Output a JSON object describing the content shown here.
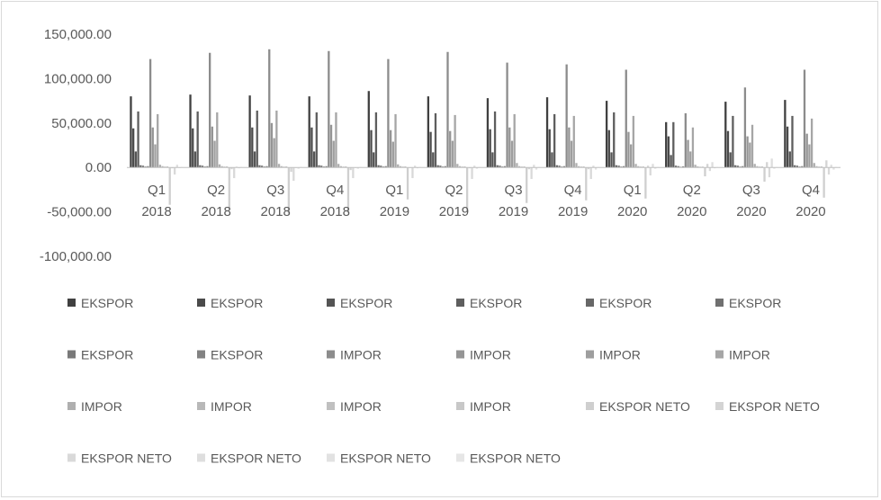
{
  "chart_data": {
    "type": "bar",
    "categories": [
      {
        "quarter": "Q1",
        "year": "2018"
      },
      {
        "quarter": "Q2",
        "year": "2018"
      },
      {
        "quarter": "Q3",
        "year": "2018"
      },
      {
        "quarter": "Q4",
        "year": "2018"
      },
      {
        "quarter": "Q1",
        "year": "2019"
      },
      {
        "quarter": "Q2",
        "year": "2019"
      },
      {
        "quarter": "Q3",
        "year": "2019"
      },
      {
        "quarter": "Q4",
        "year": "2019"
      },
      {
        "quarter": "Q1",
        "year": "2020"
      },
      {
        "quarter": "Q2",
        "year": "2020"
      },
      {
        "quarter": "Q3",
        "year": "2020"
      },
      {
        "quarter": "Q4",
        "year": "2020"
      }
    ],
    "ylim": [
      -100000,
      150000
    ],
    "yticks": [
      150000,
      100000,
      50000,
      0,
      -50000,
      -100000
    ],
    "ytick_labels": [
      "150,000.00",
      "100,000.00",
      "50,000.00",
      "0.00",
      "-50,000.00",
      "-100,000.00"
    ],
    "grid": false,
    "legend_position": "bottom",
    "series": [
      {
        "name": "EKSPOR",
        "color": "#404040",
        "values": [
          80000,
          82000,
          81000,
          80000,
          86000,
          80000,
          78000,
          79000,
          75000,
          51000,
          74000,
          76000
        ]
      },
      {
        "name": "EKSPOR",
        "color": "#4a4a4a",
        "values": [
          44000,
          44000,
          45000,
          45000,
          42000,
          40000,
          43000,
          43000,
          42000,
          35000,
          41000,
          46000
        ]
      },
      {
        "name": "EKSPOR",
        "color": "#545454",
        "values": [
          18000,
          18000,
          18000,
          18000,
          17000,
          17000,
          17000,
          17000,
          17000,
          14000,
          17000,
          18000
        ]
      },
      {
        "name": "EKSPOR",
        "color": "#5e5e5e",
        "values": [
          63000,
          63000,
          64000,
          62000,
          62000,
          61000,
          63000,
          60000,
          62000,
          51000,
          58000,
          58000
        ]
      },
      {
        "name": "EKSPOR",
        "color": "#676767",
        "values": [
          2500,
          2500,
          2500,
          2500,
          2500,
          2500,
          2500,
          2500,
          2500,
          2000,
          2500,
          2500
        ]
      },
      {
        "name": "EKSPOR",
        "color": "#707070",
        "values": [
          2000,
          2000,
          2000,
          2000,
          2000,
          2000,
          2000,
          2000,
          2000,
          1500,
          2000,
          2000
        ]
      },
      {
        "name": "EKSPOR",
        "color": "#797979",
        "values": [
          1000,
          1000,
          1000,
          1000,
          1000,
          1000,
          1000,
          1000,
          1000,
          800,
          1000,
          1000
        ]
      },
      {
        "name": "EKSPOR",
        "color": "#828282",
        "values": [
          1500,
          1500,
          1500,
          1500,
          1500,
          1500,
          1500,
          1500,
          1500,
          1200,
          1500,
          1500
        ]
      },
      {
        "name": "IMPOR",
        "color": "#8c8c8c",
        "values": [
          122000,
          129000,
          133000,
          131000,
          122000,
          130000,
          118000,
          116000,
          110000,
          61000,
          90000,
          110000
        ]
      },
      {
        "name": "IMPOR",
        "color": "#959595",
        "values": [
          45000,
          46000,
          50000,
          48000,
          42000,
          41000,
          45000,
          45000,
          40000,
          31000,
          35000,
          38000
        ]
      },
      {
        "name": "IMPOR",
        "color": "#9e9e9e",
        "values": [
          26000,
          30000,
          33000,
          30000,
          29000,
          30000,
          30000,
          30000,
          26000,
          18000,
          28000,
          26000
        ]
      },
      {
        "name": "IMPOR",
        "color": "#a6a6a6",
        "values": [
          60000,
          62000,
          64000,
          62000,
          60000,
          59000,
          60000,
          58000,
          58000,
          45000,
          48000,
          55000
        ]
      },
      {
        "name": "IMPOR",
        "color": "#afafaf",
        "values": [
          3000,
          3500,
          4000,
          4000,
          3500,
          4000,
          5000,
          5000,
          4000,
          3000,
          4000,
          5000
        ]
      },
      {
        "name": "IMPOR",
        "color": "#b8b8b8",
        "values": [
          1500,
          1500,
          1500,
          1500,
          1500,
          1500,
          1500,
          1500,
          1500,
          1200,
          1500,
          1500
        ]
      },
      {
        "name": "IMPOR",
        "color": "#c0c0c0",
        "values": [
          1000,
          1000,
          1000,
          1000,
          1000,
          1000,
          1000,
          1000,
          1000,
          800,
          1000,
          1000
        ]
      },
      {
        "name": "IMPOR",
        "color": "#c8c8c8",
        "values": [
          1200,
          1200,
          1200,
          1200,
          1200,
          1200,
          1200,
          1200,
          1200,
          1000,
          1200,
          1200
        ]
      },
      {
        "name": "EKSPOR NETO",
        "color": "#cfcfcf",
        "values": [
          -42000,
          -47000,
          -52000,
          -51000,
          -36000,
          -50000,
          -40000,
          -37000,
          -35000,
          -10000,
          -16000,
          -34000
        ]
      },
      {
        "name": "EKSPOR NETO",
        "color": "#d4d4d4",
        "values": [
          -1000,
          -2000,
          -5000,
          -3000,
          0,
          -1000,
          -2000,
          -2000,
          2000,
          4000,
          6000,
          8000
        ]
      },
      {
        "name": "EKSPOR NETO",
        "color": "#d9d9d9",
        "values": [
          -8000,
          -12000,
          -15000,
          -12000,
          -12000,
          -13000,
          -13000,
          -13000,
          -9000,
          -4000,
          -11000,
          -8000
        ]
      },
      {
        "name": "EKSPOR NETO",
        "color": "#dedede",
        "values": [
          3000,
          1000,
          0,
          0,
          2000,
          2000,
          3000,
          2000,
          4000,
          6000,
          10000,
          3000
        ]
      },
      {
        "name": "EKSPOR NETO",
        "color": "#e2e2e2",
        "values": [
          -500,
          -1000,
          -1500,
          -1500,
          -1000,
          -1500,
          -2500,
          -2500,
          -1500,
          -1000,
          -1500,
          -2500
        ]
      },
      {
        "name": "EKSPOR NETO",
        "color": "#e6e6e6",
        "values": [
          500,
          500,
          500,
          500,
          500,
          500,
          500,
          500,
          500,
          400,
          500,
          500
        ]
      }
    ]
  }
}
